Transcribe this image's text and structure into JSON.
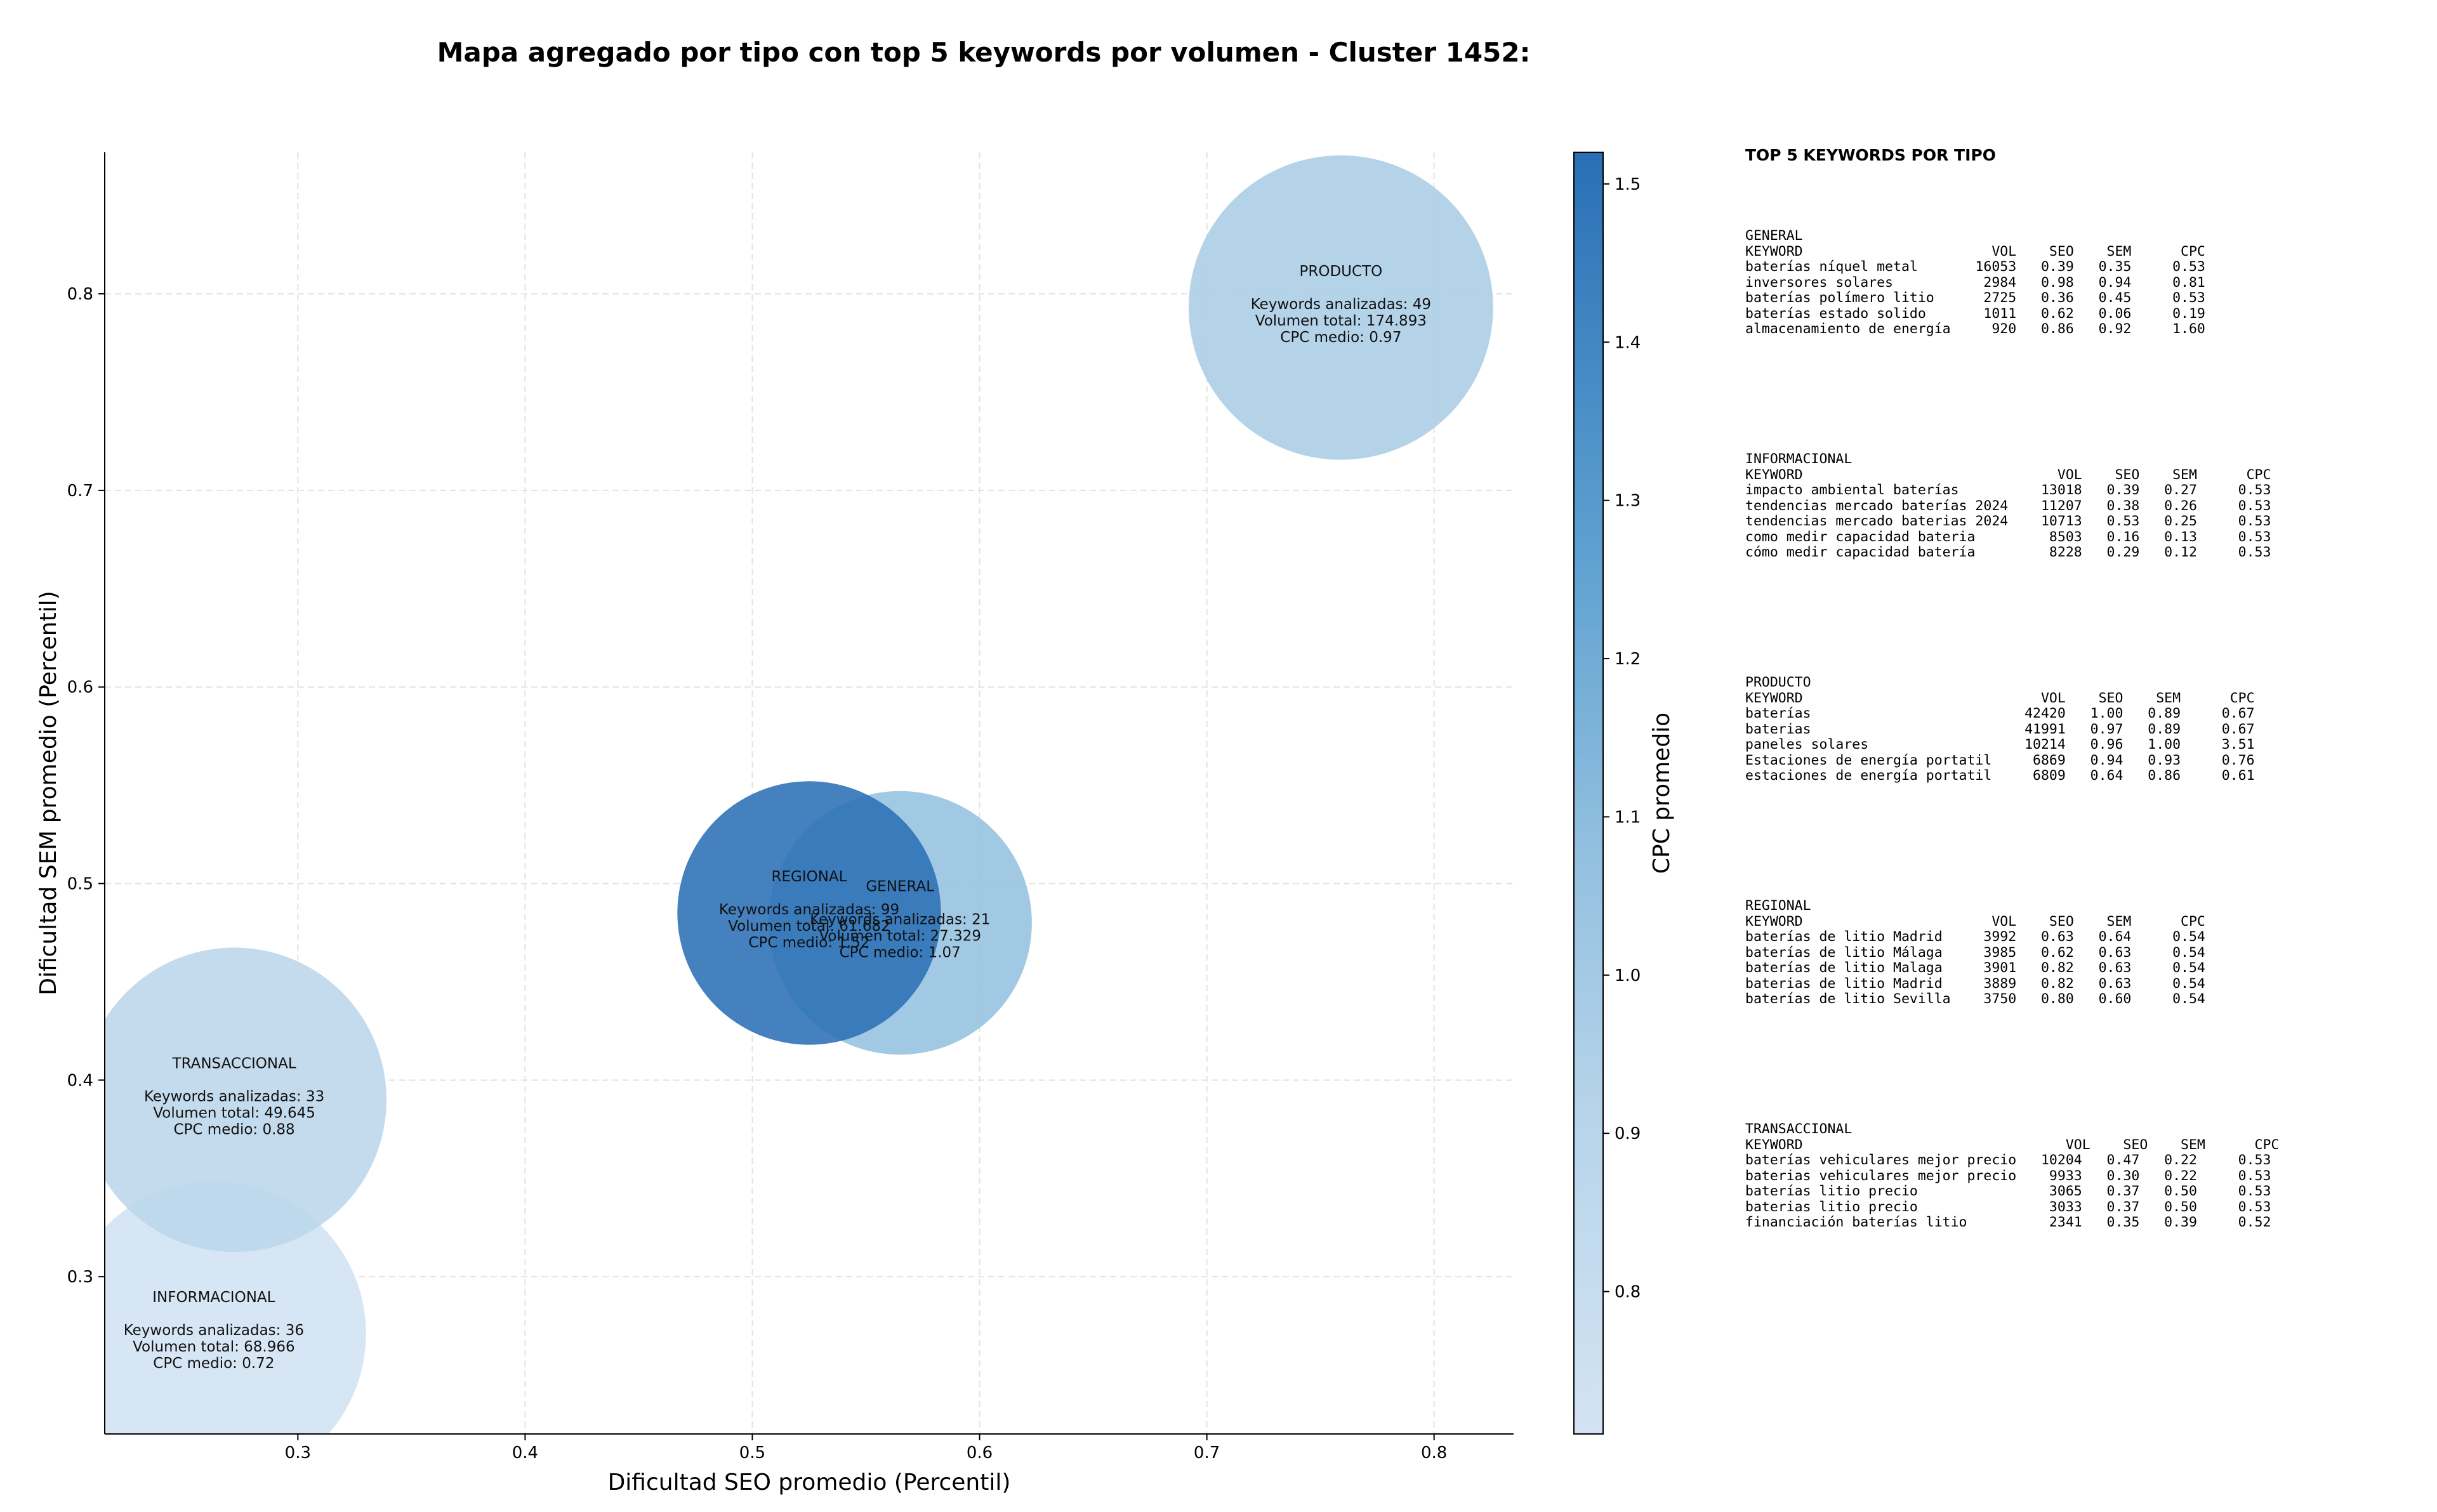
{
  "chart_data": {
    "type": "scatter",
    "title": "Mapa agregado por tipo con top 5 keywords por volumen - Cluster 1452:",
    "xlabel": "Dificultad SEO promedio (Percentil)",
    "ylabel": "Dificultad SEM promedio (Percentil)",
    "xlim": [
      0.215,
      0.835
    ],
    "ylim": [
      0.22,
      0.872
    ],
    "xticks": [
      0.3,
      0.4,
      0.5,
      0.6,
      0.7,
      0.8
    ],
    "yticks": [
      0.3,
      0.4,
      0.5,
      0.6,
      0.7,
      0.8
    ],
    "xtick_labels": [
      "0.3",
      "0.4",
      "0.5",
      "0.6",
      "0.7",
      "0.8"
    ],
    "ytick_labels": [
      "0.3",
      "0.4",
      "0.5",
      "0.6",
      "0.7",
      "0.8"
    ],
    "grid": true,
    "colorbar": {
      "label": "CPC promedio",
      "range": [
        0.71,
        1.52
      ],
      "ticks": [
        0.8,
        0.9,
        1.0,
        1.1,
        1.2,
        1.3,
        1.4,
        1.5
      ],
      "tick_labels": [
        "0.8",
        "0.9",
        "1.0",
        "1.1",
        "1.2",
        "1.3",
        "1.4",
        "1.5"
      ],
      "colors": [
        "#d3e3f3",
        "#a6cde3",
        "#5b9fd0",
        "#2a6fb5"
      ]
    },
    "bubbles": [
      {
        "name": "INFORMACIONAL",
        "x": 0.263,
        "y": 0.271,
        "r_data": 0.067,
        "cpc": 0.72,
        "stat_keywords": "Keywords analizadas: 36",
        "stat_volume": "Volumen total: 68.966",
        "stat_cpc": "CPC medio: 0.72"
      },
      {
        "name": "TRANSACCIONAL",
        "x": 0.272,
        "y": 0.39,
        "r_data": 0.067,
        "cpc": 0.88,
        "stat_keywords": "Keywords analizadas: 33",
        "stat_volume": "Volumen total: 49.645",
        "stat_cpc": "CPC medio: 0.88"
      },
      {
        "name": "PRODUCTO",
        "x": 0.759,
        "y": 0.793,
        "r_data": 0.067,
        "cpc": 0.97,
        "stat_keywords": "Keywords analizadas: 49",
        "stat_volume": "Volumen total: 174.893",
        "stat_cpc": "CPC medio: 0.97"
      },
      {
        "name": "GENERAL",
        "x": 0.565,
        "y": 0.48,
        "r_data": 0.058,
        "cpc": 1.07,
        "stat_keywords": "Keywords analizadas: 21",
        "stat_volume": "Volumen total: 27.329",
        "stat_cpc": "CPC medio: 1.07"
      },
      {
        "name": "REGIONAL",
        "x": 0.525,
        "y": 0.485,
        "r_data": 0.058,
        "cpc": 1.52,
        "stat_keywords": "Keywords analizadas: 99",
        "stat_volume": "Volumen total: 61.682",
        "stat_cpc": "CPC medio: 1.52"
      }
    ]
  },
  "side_panel": {
    "title": "TOP 5 KEYWORDS POR TIPO",
    "blocks": [
      {
        "name": "GENERAL",
        "header": "KEYWORD                       VOL    SEO    SEM      CPC",
        "rows": [
          "baterías níquel metal       16053   0.39   0.35     0.53",
          "inversores solares           2984   0.98   0.94     0.81",
          "baterías polímero litio      2725   0.36   0.45     0.53",
          "baterías estado solido       1011   0.62   0.06     0.19",
          "almacenamiento de energía     920   0.86   0.92     1.60"
        ]
      },
      {
        "name": "INFORMACIONAL",
        "header": "KEYWORD                               VOL    SEO    SEM      CPC",
        "rows": [
          "impacto ambiental baterías          13018   0.39   0.27     0.53",
          "tendencias mercado baterías 2024    11207   0.38   0.26     0.53",
          "tendencias mercado baterias 2024    10713   0.53   0.25     0.53",
          "como medir capacidad bateria         8503   0.16   0.13     0.53",
          "cómo medir capacidad batería         8228   0.29   0.12     0.53"
        ]
      },
      {
        "name": "PRODUCTO",
        "header": "KEYWORD                             VOL    SEO    SEM      CPC",
        "rows": [
          "baterías                          42420   1.00   0.89     0.67",
          "baterias                          41991   0.97   0.89     0.67",
          "paneles solares                   10214   0.96   1.00     3.51",
          "Estaciones de energía portatil     6869   0.94   0.93     0.76",
          "estaciones de energía portatil     6809   0.64   0.86     0.61"
        ]
      },
      {
        "name": "REGIONAL",
        "header": "KEYWORD                       VOL    SEO    SEM      CPC",
        "rows": [
          "baterías de litio Madrid     3992   0.63   0.64     0.54",
          "baterías de litio Málaga     3985   0.62   0.63     0.54",
          "baterías de litio Malaga     3901   0.82   0.63     0.54",
          "baterias de litio Madrid     3889   0.82   0.63     0.54",
          "baterías de litio Sevilla    3750   0.80   0.60     0.54"
        ]
      },
      {
        "name": "TRANSACCIONAL",
        "header": "KEYWORD                                VOL    SEO    SEM      CPC",
        "rows": [
          "baterías vehiculares mejor precio   10204   0.47   0.22     0.53",
          "baterias vehiculares mejor precio    9933   0.30   0.22     0.53",
          "baterías litio precio                3065   0.37   0.50     0.53",
          "baterias litio precio                3033   0.37   0.50     0.53",
          "financiación baterías litio          2341   0.35   0.39     0.52"
        ]
      }
    ]
  }
}
